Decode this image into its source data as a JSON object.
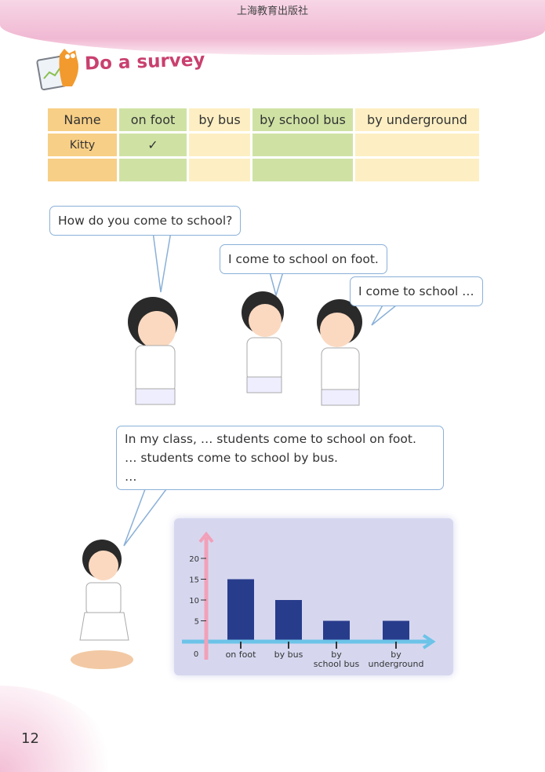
{
  "header": {
    "publisher": "上海教育出版社"
  },
  "section": {
    "title": "Do a survey",
    "icon": "cat-clipboard-icon"
  },
  "survey_table": {
    "headers": [
      "Name",
      "on foot",
      "by bus",
      "by school bus",
      "by underground"
    ],
    "rows": [
      [
        "Kitty",
        "✓",
        "",
        "",
        ""
      ],
      [
        "",
        "",
        "",
        "",
        ""
      ]
    ]
  },
  "dialogue": {
    "q": "How do you come to school?",
    "a1": "I come to school on foot.",
    "a2": "I come to school …",
    "summary": [
      "In my class, … students come to school on foot.",
      "… students come to school by bus.",
      "…"
    ]
  },
  "chart_data": {
    "type": "bar",
    "categories": [
      "on foot",
      "by bus",
      "by school bus",
      "by underground"
    ],
    "category_labels": [
      [
        "on foot"
      ],
      [
        "by bus"
      ],
      [
        "by",
        "school bus"
      ],
      [
        "by",
        "underground"
      ]
    ],
    "values": [
      15,
      10,
      5,
      5
    ],
    "yticks": [
      0,
      5,
      10,
      15,
      20
    ],
    "ylim": [
      0,
      22
    ],
    "bar_color": "#283c8c",
    "y_axis_color": "#f2a0b8",
    "x_axis_color": "#6cc3e8"
  },
  "footer": {
    "page_number": "12"
  }
}
